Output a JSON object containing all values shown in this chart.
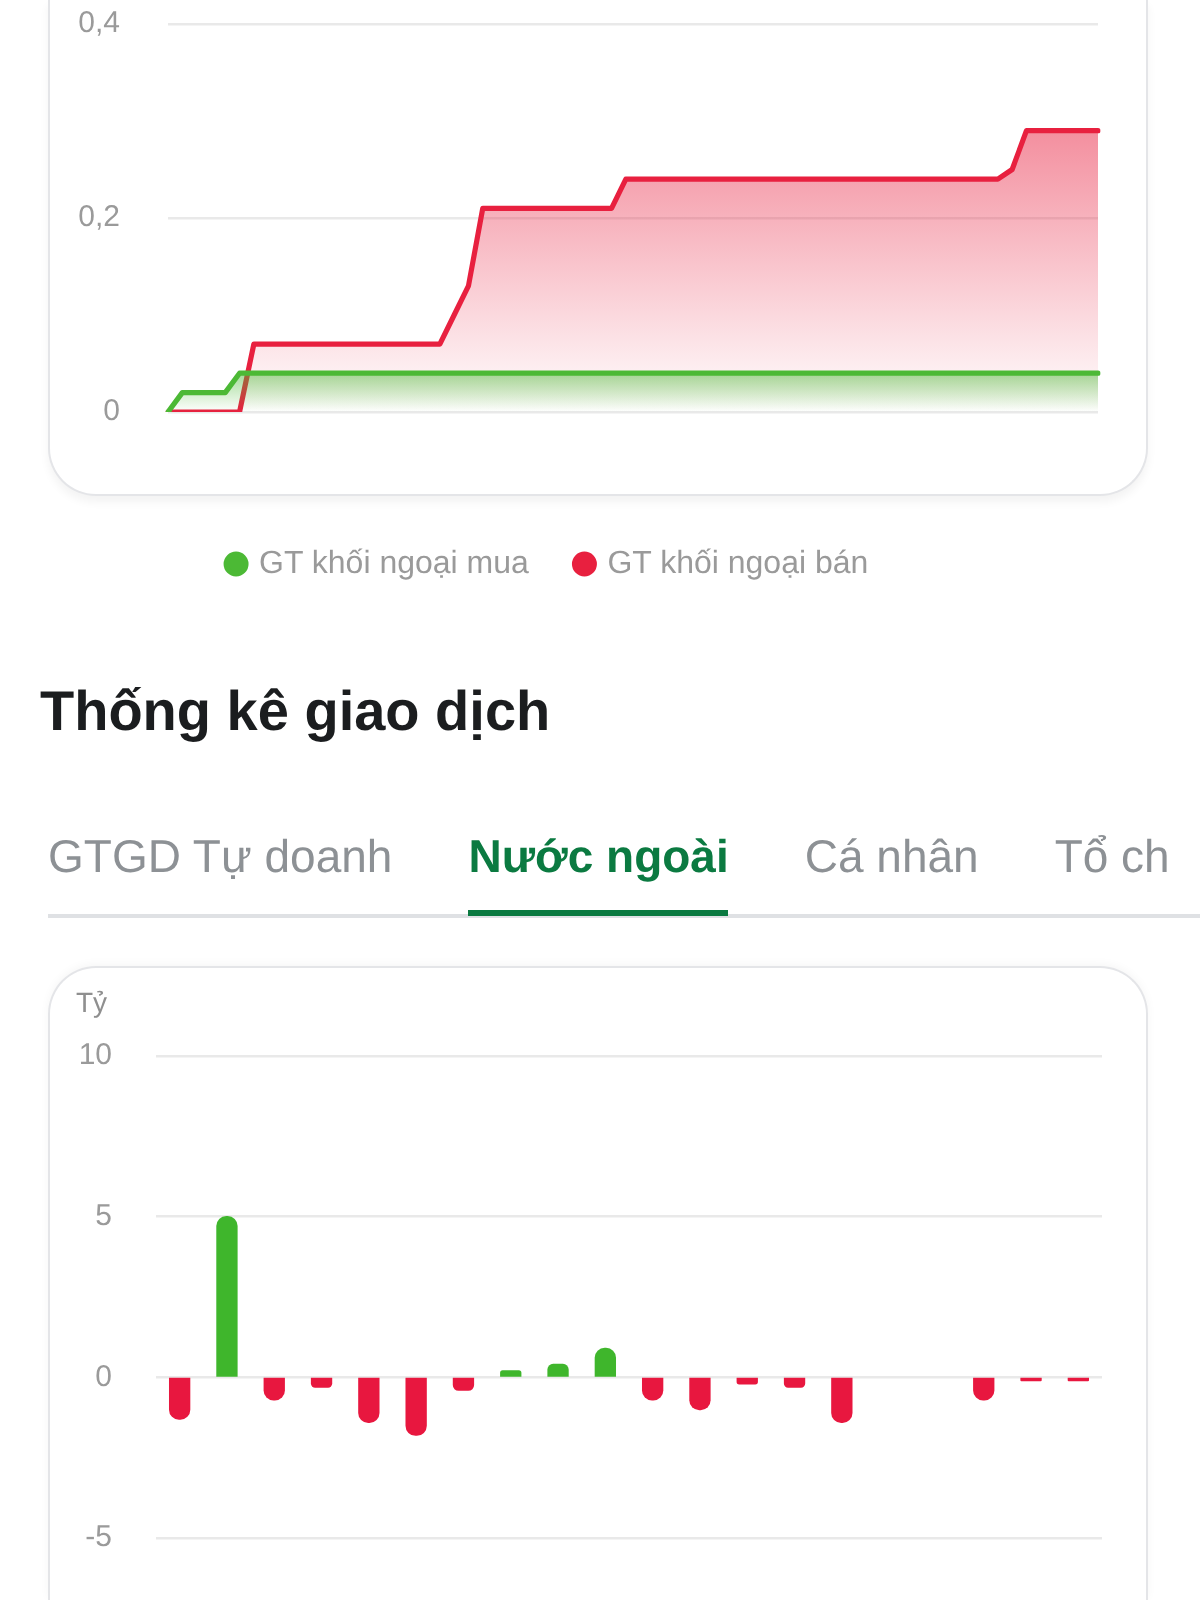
{
  "chart_data": [
    {
      "type": "area",
      "categories": [
        null,
        null,
        null,
        null,
        null,
        null,
        null,
        null,
        null,
        null,
        null,
        null,
        null,
        null,
        null,
        null,
        null,
        null,
        null,
        null,
        null,
        null,
        null,
        null,
        null,
        null,
        null,
        null,
        null,
        null,
        null,
        null,
        null,
        null,
        null,
        null,
        null,
        null,
        null,
        null,
        null,
        null,
        null,
        null,
        null,
        null,
        null,
        null,
        null,
        null,
        null,
        null,
        null,
        null,
        null,
        null,
        null,
        null,
        null,
        null,
        null,
        null,
        null,
        null,
        null,
        null
      ],
      "series": [
        {
          "name": "GT khối ngoại mua",
          "color": "#4cb935",
          "values": [
            0,
            0.02,
            0.02,
            0.02,
            0.02,
            0.04,
            0.04,
            0.04,
            0.04,
            0.04,
            0.04,
            0.04,
            0.04,
            0.04,
            0.04,
            0.04,
            0.04,
            0.04,
            0.04,
            0.04,
            0.04,
            0.04,
            0.04,
            0.04,
            0.04,
            0.04,
            0.04,
            0.04,
            0.04,
            0.04,
            0.04,
            0.04,
            0.04,
            0.04,
            0.04,
            0.04,
            0.04,
            0.04,
            0.04,
            0.04,
            0.04,
            0.04,
            0.04,
            0.04,
            0.04,
            0.04,
            0.04,
            0.04,
            0.04,
            0.04,
            0.04,
            0.04,
            0.04,
            0.04,
            0.04,
            0.04,
            0.04,
            0.04,
            0.04,
            0.04,
            0.04,
            0.04,
            0.04,
            0.04,
            0.04,
            0.04
          ]
        },
        {
          "name": "GT khối ngoại bán",
          "color": "#e8203f",
          "values": [
            0,
            0,
            0,
            0,
            0,
            0,
            0.07,
            0.07,
            0.07,
            0.07,
            0.07,
            0.07,
            0.07,
            0.07,
            0.07,
            0.07,
            0.07,
            0.07,
            0.07,
            0.07,
            0.1,
            0.13,
            0.21,
            0.21,
            0.21,
            0.21,
            0.21,
            0.21,
            0.21,
            0.21,
            0.21,
            0.21,
            0.24,
            0.24,
            0.24,
            0.24,
            0.24,
            0.24,
            0.24,
            0.24,
            0.24,
            0.24,
            0.24,
            0.24,
            0.24,
            0.24,
            0.24,
            0.24,
            0.24,
            0.24,
            0.24,
            0.24,
            0.24,
            0.24,
            0.24,
            0.24,
            0.24,
            0.24,
            0.24,
            0.25,
            0.29,
            0.29,
            0.29,
            0.29,
            0.29,
            0.29
          ]
        }
      ],
      "ylim": [
        0,
        0.4
      ],
      "yticks": [
        0,
        {
          "value": 0.2,
          "label": "0,2"
        },
        {
          "value": 0.4,
          "label": "0,4"
        }
      ],
      "grid": "y",
      "legend": "bottom"
    },
    {
      "type": "bar",
      "title": "Thống kê giao dịch",
      "ylabel": "Tỷ",
      "annotations": [
        "GTGD Tự doanh",
        "Nước ngoài",
        "Cá nhân",
        "Tổ ch"
      ],
      "categories": [
        null,
        null,
        null,
        null,
        null,
        null,
        null,
        null,
        null,
        null,
        null,
        null,
        null,
        null,
        null,
        null,
        null,
        null,
        null,
        null
      ],
      "values": [
        -1.3,
        5,
        -0.7,
        -0.3,
        -1.4,
        -1.8,
        -0.4,
        0.2,
        0.4,
        0.9,
        -0.7,
        -1,
        -0.2,
        -0.3,
        -1.4,
        null,
        null,
        -0.7,
        -0.1,
        -0.1
      ],
      "colors": [
        "#e8173f",
        "#3fb62c",
        "#e8173f",
        "#e8173f",
        "#e8173f",
        "#e8173f",
        "#e8173f",
        "#3fb62c",
        "#3fb62c",
        "#3fb62c",
        "#e8173f",
        "#e8173f",
        "#e8173f",
        "#e8173f",
        "#e8173f",
        null,
        null,
        "#e8173f",
        "#e8173f",
        "#e8173f"
      ],
      "ylim": [
        -5,
        10
      ],
      "yticks": [
        -5,
        0,
        5,
        10
      ],
      "grid": "y"
    }
  ]
}
